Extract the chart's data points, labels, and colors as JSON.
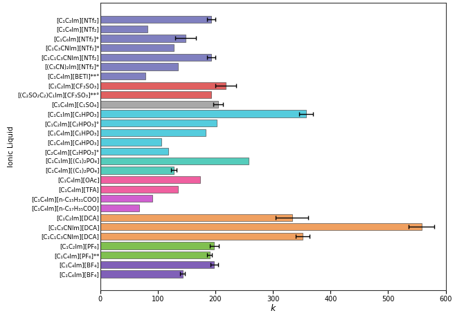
{
  "labels": [
    "[C₁C₂Im][NTf₂]",
    "[C₁C₄Im][NTf₂]",
    "[C₁C₆Im][NTf₂]*",
    "[C₁C₃CNIm][NTf₂]*",
    "[C₁C₁C₃CNIm][NTf₂]",
    "[(C₃CN)₂Im][NTf₂]*",
    "[C₁C₄Im][BETI]**°",
    "[C₁C₂Im][CF₃SO₃]",
    "[(C₂SO₂C₂)C₁Im][CF₃SO₃]**°",
    "[C₁C₄Im][C₁SO₄]",
    "[C₁C₁Im][C₁HPO₃]",
    "[C₁C₂Im][C₂HPO₃]°",
    "[C₁C₄Im][C₁HPO₃]",
    "[C₁C₄Im][C₄HPO₃]",
    "[C₂C₄Im][C₂HPO₃]°",
    "[C₁C₁Im][(C₁)₂PO₄]",
    "[C₁C₄Im][(C₁)₂PO₄]",
    "[C₁C₄Im][OAc]",
    "[C₁C₄Im][TFA]",
    "[C₁C₄Im][n-C₁₅H₃₁COO]",
    "[C₁C₄Im][n-C₁₇H₃₅COO]",
    "[C₁C₂Im][DCA]",
    "[C₁C₃CNIm][DCA]",
    "[C₁C₁C₃CNIm][DCA]",
    "[C₁C₂Im][PF₆]",
    "[C₁C₄Im][PF₆]**",
    "[C₁C₄Im][BF₄]",
    "[C₁C₆Im][BF₄]"
  ],
  "values": [
    193,
    82,
    148,
    128,
    193,
    135,
    78,
    218,
    193,
    205,
    358,
    202,
    183,
    106,
    118,
    258,
    128,
    173,
    135,
    90,
    68,
    333,
    558,
    352,
    198,
    190,
    198,
    143
  ],
  "errors": [
    7,
    0,
    18,
    0,
    7,
    0,
    0,
    18,
    0,
    8,
    12,
    0,
    0,
    0,
    0,
    0,
    5,
    0,
    0,
    0,
    0,
    28,
    22,
    12,
    8,
    4,
    7,
    4
  ],
  "colors": [
    "#8080c0",
    "#8080c0",
    "#8080c0",
    "#8080c0",
    "#8080c0",
    "#8080c0",
    "#8080c0",
    "#e06060",
    "#e06060",
    "#a8a8a8",
    "#55ccdd",
    "#55ccdd",
    "#55ccdd",
    "#55ccdd",
    "#55ccdd",
    "#55ccbb",
    "#55ccbb",
    "#f060a0",
    "#f060a0",
    "#d060d0",
    "#d060d0",
    "#f0a060",
    "#f0a060",
    "#f0a060",
    "#80c050",
    "#80c050",
    "#8060b8",
    "#8060b8"
  ],
  "bar_edgecolor": "#555555",
  "bar_edgewidth": 0.5,
  "bar_height": 0.75,
  "xlabel": "k",
  "ylabel": "Ionic Liquid",
  "xlim": [
    0,
    600
  ],
  "xticks": [
    0,
    100,
    200,
    300,
    400,
    500,
    600
  ],
  "label_fontsize": 6.2,
  "xlabel_fontsize": 9,
  "ylabel_fontsize": 7.5,
  "tick_fontsize": 7,
  "figsize": [
    6.57,
    4.66
  ],
  "dpi": 100
}
